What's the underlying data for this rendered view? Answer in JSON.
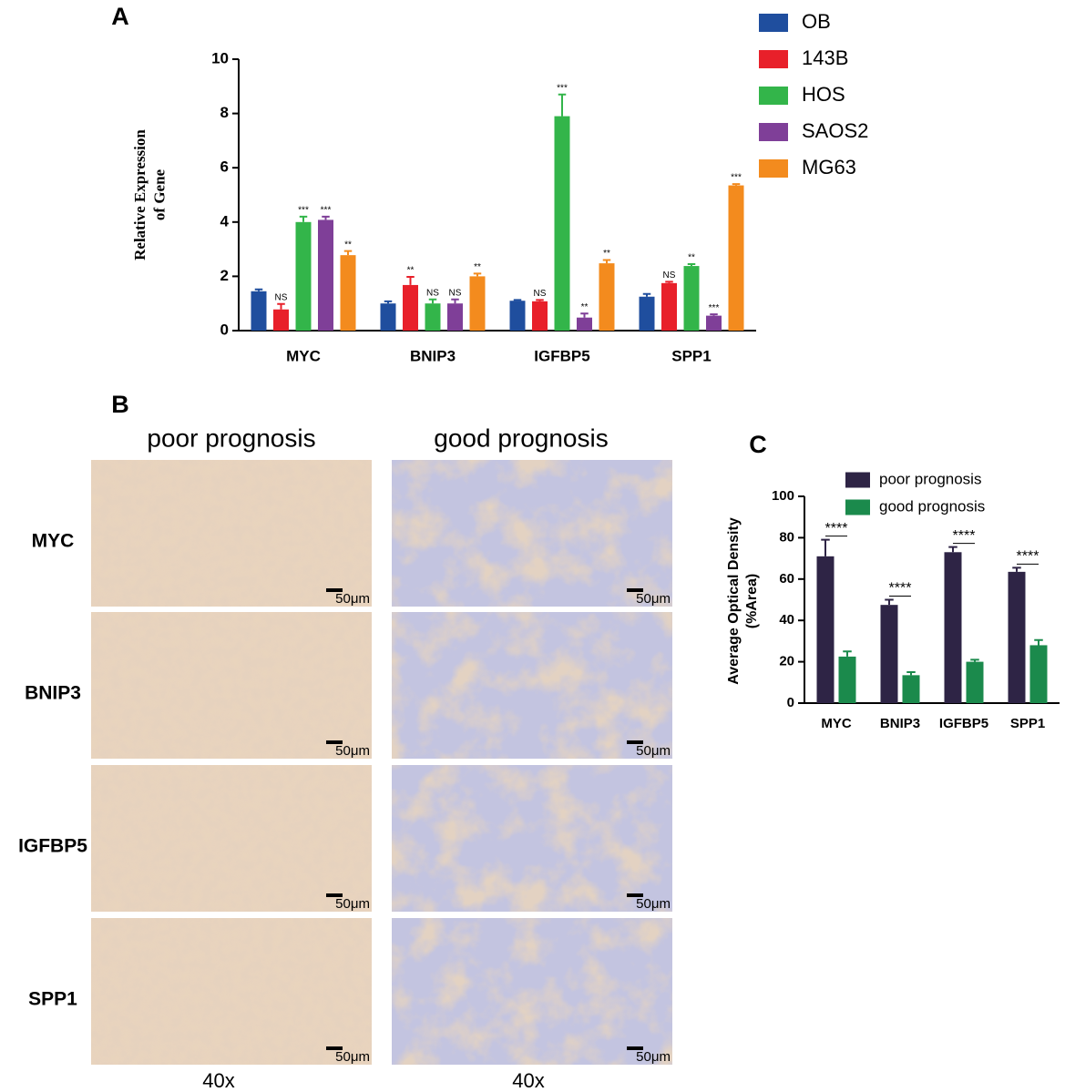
{
  "chart_data": [
    {
      "type": "bar",
      "panel_label": "A",
      "ylabel": [
        "Relative Expression",
        "of Gene"
      ],
      "categories": [
        "MYC",
        "BNIP3",
        "IGFBP5",
        "SPP1"
      ],
      "ylim": [
        0,
        10
      ],
      "yticks": [
        0,
        2,
        4,
        6,
        8,
        10
      ],
      "legend": "right",
      "series": [
        {
          "name": "OB",
          "color": "#1f4e9e",
          "values": [
            1.45,
            1.0,
            1.1,
            1.25
          ],
          "errors": [
            0.07,
            0.08,
            0.03,
            0.1
          ]
        },
        {
          "name": "143B",
          "color": "#e8202a",
          "values": [
            0.78,
            1.68,
            1.08,
            1.75
          ],
          "errors": [
            0.2,
            0.3,
            0.05,
            0.05
          ],
          "annotations": [
            "NS",
            "**",
            "NS",
            "NS"
          ]
        },
        {
          "name": "HOS",
          "color": "#33b54a",
          "values": [
            4.0,
            1.0,
            7.9,
            2.38
          ],
          "errors": [
            0.2,
            0.15,
            0.8,
            0.07
          ],
          "annotations": [
            "***",
            "NS",
            "***",
            "**"
          ]
        },
        {
          "name": "SAOS2",
          "color": "#7f3f98",
          "values": [
            4.08,
            1.0,
            0.48,
            0.55
          ],
          "errors": [
            0.12,
            0.15,
            0.15,
            0.05
          ],
          "annotations": [
            "***",
            "NS",
            "**",
            "***"
          ]
        },
        {
          "name": "MG63",
          "color": "#f38b1e",
          "values": [
            2.78,
            2.0,
            2.48,
            5.35
          ],
          "errors": [
            0.15,
            0.1,
            0.12,
            0.05
          ],
          "annotations": [
            "**",
            "**",
            "**",
            "***"
          ]
        }
      ]
    },
    {
      "type": "bar",
      "panel_label": "C",
      "ylabel": [
        "Average Optical Density",
        "(%Area)"
      ],
      "categories": [
        "MYC",
        "BNIP3",
        "IGFBP5",
        "SPP1"
      ],
      "ylim": [
        0,
        100
      ],
      "yticks": [
        0,
        20,
        40,
        60,
        80,
        100
      ],
      "legend": "top",
      "significance": [
        "****",
        "****",
        "****",
        "****"
      ],
      "series": [
        {
          "name": "poor prognosis",
          "color": "#2e2445",
          "values": [
            71,
            47.5,
            73,
            63.5
          ],
          "errors": [
            8,
            2.5,
            2.5,
            2
          ]
        },
        {
          "name": "good prognosis",
          "color": "#1b8a4c",
          "values": [
            22.5,
            13.5,
            20,
            28
          ],
          "errors": [
            2.5,
            1.5,
            1,
            2.5
          ]
        }
      ]
    }
  ],
  "panel_b": {
    "panel_label": "B",
    "columns": [
      "poor prognosis",
      "good prognosis"
    ],
    "rows": [
      "MYC",
      "BNIP3",
      "IGFBP5",
      "SPP1"
    ],
    "scale_bar": "50μm",
    "magnification": "40x"
  }
}
